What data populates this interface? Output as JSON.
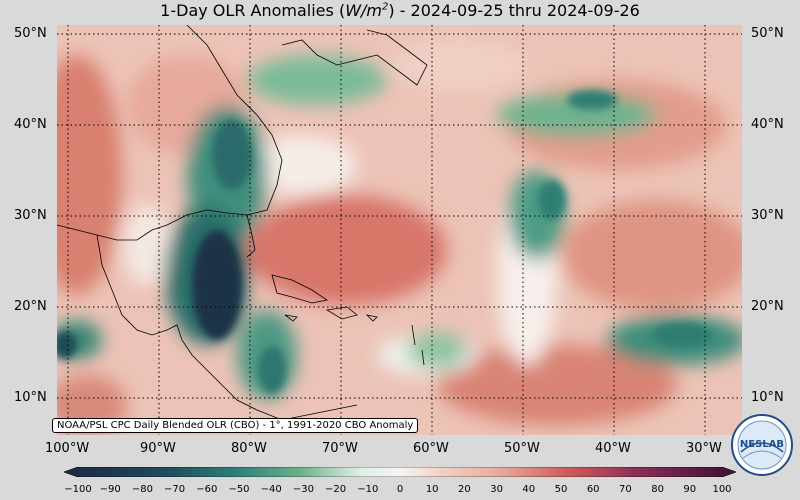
{
  "title": {
    "prefix": "1-Day OLR Anomalies (",
    "unit_base": "W/m",
    "unit_exp": "2",
    "suffix": ") - 2024-09-25 thru 2024-09-26"
  },
  "map": {
    "lon_range": [
      -100,
      -25
    ],
    "lat_range": [
      7,
      52
    ],
    "lat_labels": [
      "50°N",
      "40°N",
      "30°N",
      "20°N",
      "10°N"
    ],
    "lon_labels": [
      "100°W",
      "90°W",
      "80°W",
      "70°W",
      "60°W",
      "50°W",
      "40°W",
      "30°W"
    ]
  },
  "credit": "NOAA/PSL CPC Daily Blended OLR (CBO) - 1°, 1991-2020 CBO Anomaly",
  "colorbar": {
    "ticks": [
      "−100",
      "−90",
      "−80",
      "−70",
      "−60",
      "−50",
      "−40",
      "−30",
      "−20",
      "−10",
      "0",
      "10",
      "20",
      "30",
      "40",
      "50",
      "60",
      "70",
      "80",
      "90",
      "100"
    ],
    "colors": {
      "deep": "#1c2740",
      "teal": "#2a7d77",
      "green": "#6ab08a",
      "light": "#dfeee4",
      "neutral": "#f5f5f5",
      "salmon": "#e7a99b",
      "red": "#cf5b58",
      "maroon": "#8e2f59",
      "purple": "#3b1131"
    }
  },
  "logo": {
    "text": "NESLAB",
    "icon": "noaa-lab-logo-icon"
  }
}
